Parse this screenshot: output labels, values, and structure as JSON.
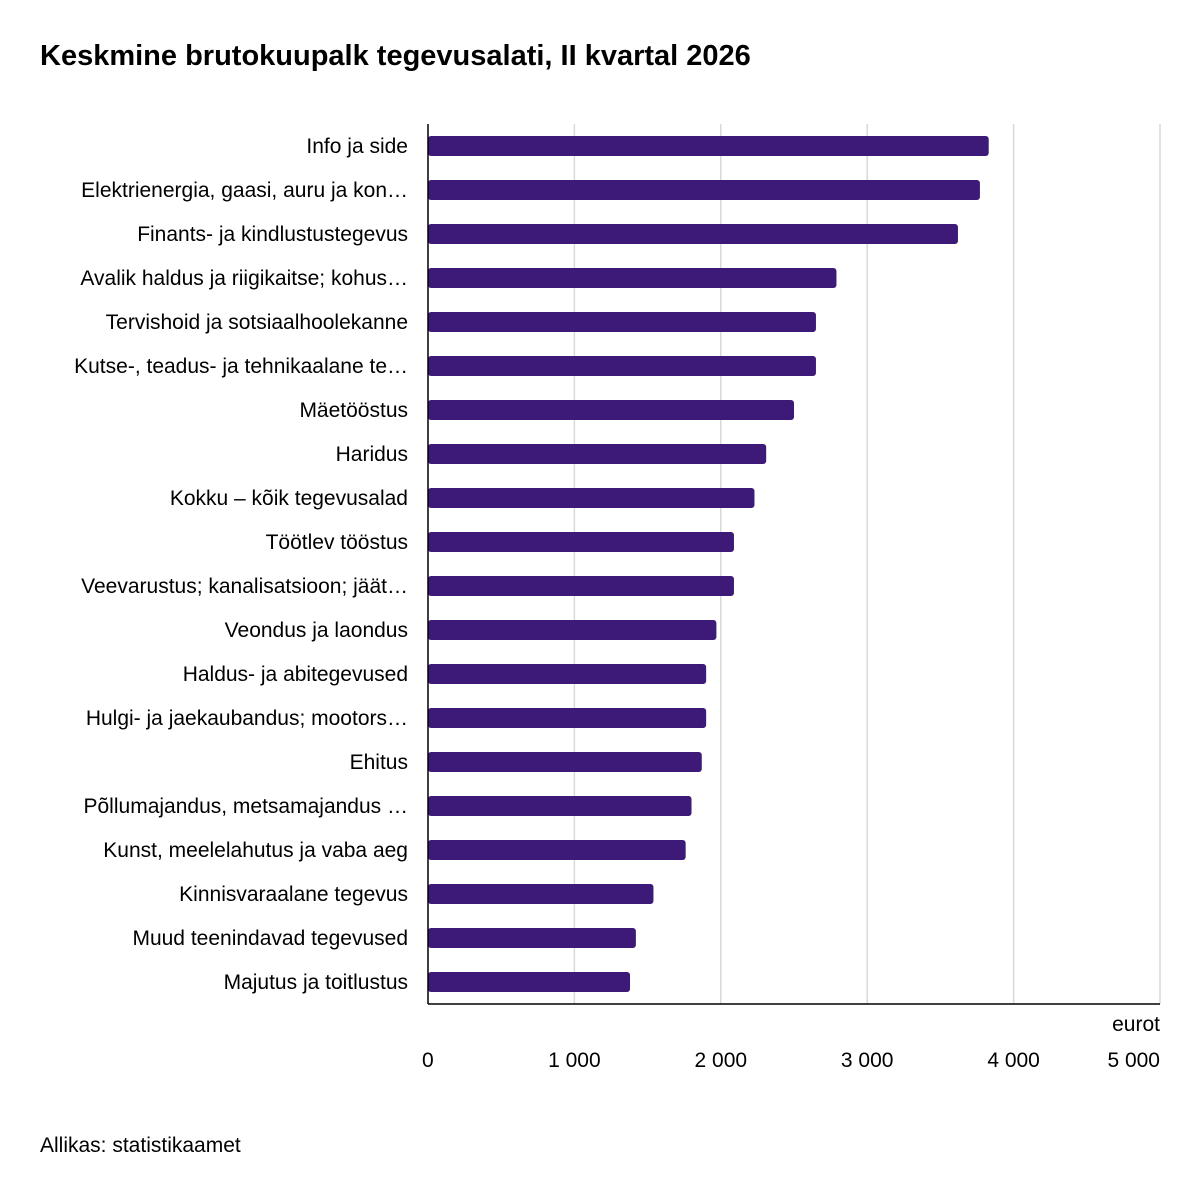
{
  "title": "Keskmine brutokuupalk tegevusalati, II kvartal 2026",
  "source": "Allikas: statistikaamet",
  "colors": {
    "bar": "#3d1a78",
    "grid": "#d9d9d9",
    "axis": "#000000"
  },
  "chart_data": {
    "type": "bar",
    "orientation": "horizontal",
    "title": "Keskmine brutokuupalk tegevusalati, II kvartal 2026",
    "xlabel": "eurot",
    "ylabel": "",
    "xlim": [
      0,
      5000
    ],
    "xticks": [
      0,
      1000,
      2000,
      3000,
      4000,
      5000
    ],
    "xtick_labels": [
      "0",
      "1 000",
      "2 000",
      "3 000",
      "4 000",
      "5 000"
    ],
    "grid": "vertical",
    "categories": [
      "Info ja side",
      "Elektrienergia, gaasi, auru ja kon…",
      "Finants- ja kindlustustegevus",
      "Avalik haldus ja riigikaitse; kohus…",
      "Tervishoid ja sotsiaalhoolekanne",
      "Kutse-, teadus- ja tehnikaalane te…",
      "Mäetööstus",
      "Haridus",
      "Kokku – kõik tegevusalad",
      "Töötlev tööstus",
      "Veevarustus; kanalisatsioon; jäät…",
      "Veondus ja laondus",
      "Haldus- ja abitegevused",
      "Hulgi- ja jaekaubandus; mootors…",
      "Ehitus",
      "Põllumajandus, metsamajandus …",
      "Kunst, meelelahutus ja vaba aeg",
      "Kinnisvaraalane tegevus",
      "Muud teenindavad tegevused",
      "Majutus ja toitlustus"
    ],
    "values": [
      3830,
      3770,
      3620,
      2790,
      2650,
      2650,
      2500,
      2310,
      2230,
      2090,
      2090,
      1970,
      1900,
      1900,
      1870,
      1800,
      1760,
      1540,
      1420,
      1380
    ]
  }
}
